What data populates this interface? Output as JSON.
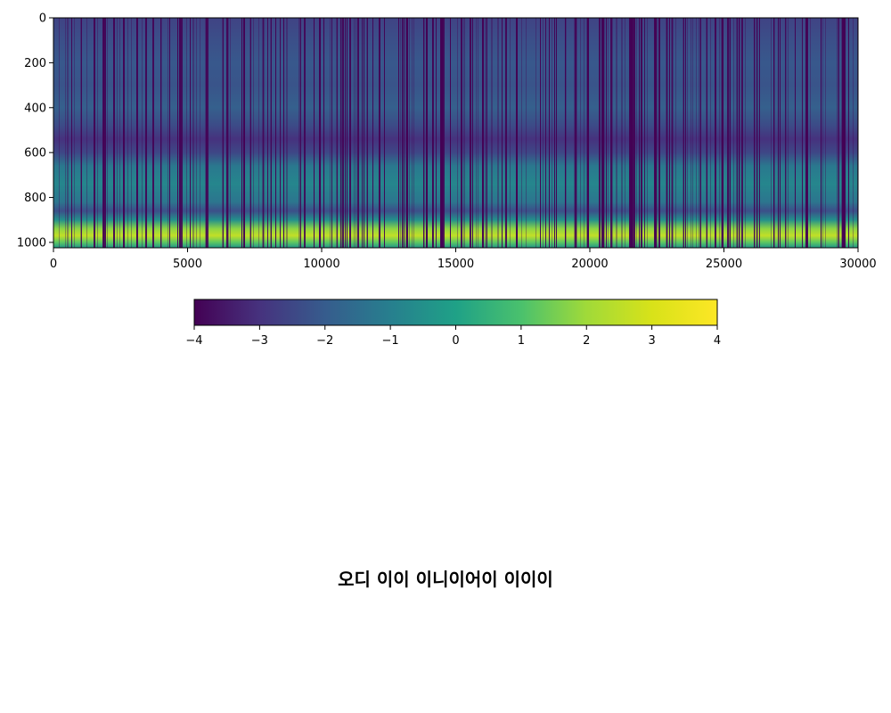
{
  "chart_data": {
    "type": "heatmap",
    "title": "",
    "xlabel": "",
    "ylabel": "",
    "xlim": [
      0,
      30000
    ],
    "ylim": [
      1024,
      0
    ],
    "x_ticks": [
      0,
      5000,
      10000,
      15000,
      20000,
      25000,
      30000
    ],
    "y_ticks": [
      0,
      200,
      400,
      600,
      800,
      1000
    ],
    "colormap": "viridis",
    "colorbar": {
      "orientation": "horizontal",
      "range": [
        -4,
        4
      ],
      "ticks": [
        -4,
        -3,
        -2,
        -1,
        0,
        1,
        2,
        3,
        4
      ],
      "tick_labels": [
        "−4",
        "−3",
        "−2",
        "−1",
        "0",
        "1",
        "2",
        "3",
        "4"
      ]
    },
    "row_profile": [
      {
        "y": 0,
        "value": -2.6
      },
      {
        "y": 100,
        "value": -2.3
      },
      {
        "y": 200,
        "value": -2.1
      },
      {
        "y": 300,
        "value": -2.2
      },
      {
        "y": 400,
        "value": -1.9
      },
      {
        "y": 480,
        "value": -2.4
      },
      {
        "y": 540,
        "value": -3.0
      },
      {
        "y": 600,
        "value": -2.5
      },
      {
        "y": 660,
        "value": -1.2
      },
      {
        "y": 740,
        "value": -0.8
      },
      {
        "y": 820,
        "value": -1.3
      },
      {
        "y": 860,
        "value": -2.3
      },
      {
        "y": 900,
        "value": -0.5
      },
      {
        "y": 940,
        "value": 1.8
      },
      {
        "y": 970,
        "value": 2.6
      },
      {
        "y": 1000,
        "value": 1.2
      },
      {
        "y": 1024,
        "value": -0.3
      }
    ]
  },
  "caption": "오디 이이 이니이어이 이이이"
}
